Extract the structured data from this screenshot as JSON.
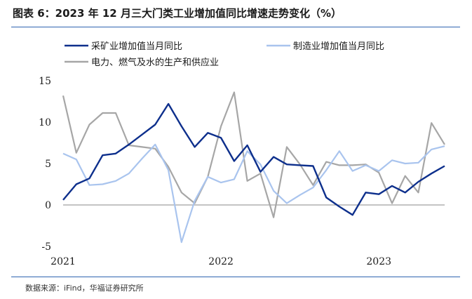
{
  "header": {
    "title": "图表 6：2023 年 12 月三大门类工业增加值同比增速走势变化（%）"
  },
  "footer": {
    "source": "数据来源：iFind，华福证券研究所"
  },
  "chart_data": {
    "type": "line",
    "title": "图表 6：2023 年 12 月三大门类工业增加值同比增速走势变化（%）",
    "ylim": [
      -5,
      15
    ],
    "yticks": [
      "15",
      "10",
      "5",
      "0",
      "-5"
    ],
    "ytick_values": [
      15,
      10,
      5,
      0,
      -5
    ],
    "xticks": [
      {
        "label": "2021",
        "index": 0
      },
      {
        "label": "2022",
        "index": 12
      },
      {
        "label": "2023",
        "index": 24
      }
    ],
    "grid": false,
    "legend_position": "top",
    "series": [
      {
        "name": "采矿业增加值当月同比",
        "color": "#0d2f8c",
        "values": [
          0.6,
          2.5,
          3.2,
          6.0,
          6.2,
          7.3,
          8.5,
          9.7,
          12.2,
          9.5,
          7.0,
          8.7,
          8.1,
          5.3,
          7.2,
          4.0,
          5.8,
          4.9,
          4.8,
          4.7,
          0.9,
          -0.2,
          -1.2,
          1.5,
          1.3,
          2.3,
          1.5,
          2.8,
          3.8,
          4.7
        ]
      },
      {
        "name": "制造业增加值当月同比",
        "color": "#a9c4ee",
        "values": [
          6.2,
          5.5,
          2.4,
          2.5,
          2.9,
          3.8,
          5.6,
          7.3,
          4.2,
          -4.5,
          0.5,
          3.4,
          2.7,
          3.1,
          6.5,
          4.9,
          1.7,
          0.2,
          1.2,
          2.1,
          4.2,
          6.5,
          4.1,
          4.8,
          4.1,
          5.4,
          5.0,
          5.1,
          6.7,
          7.1
        ]
      },
      {
        "name": "电力、燃气及水的生产和供应业",
        "color": "#a6a6a6",
        "values": [
          13.2,
          6.3,
          9.7,
          11.1,
          11.1,
          7.2,
          7.0,
          6.8,
          4.6,
          1.5,
          0.2,
          3.4,
          9.5,
          13.6,
          2.9,
          3.8,
          -1.5,
          7.0,
          4.9,
          2.4,
          5.2,
          4.8,
          4.8,
          4.9,
          3.9,
          0.2,
          3.5,
          1.5,
          9.9,
          7.3
        ]
      }
    ]
  }
}
